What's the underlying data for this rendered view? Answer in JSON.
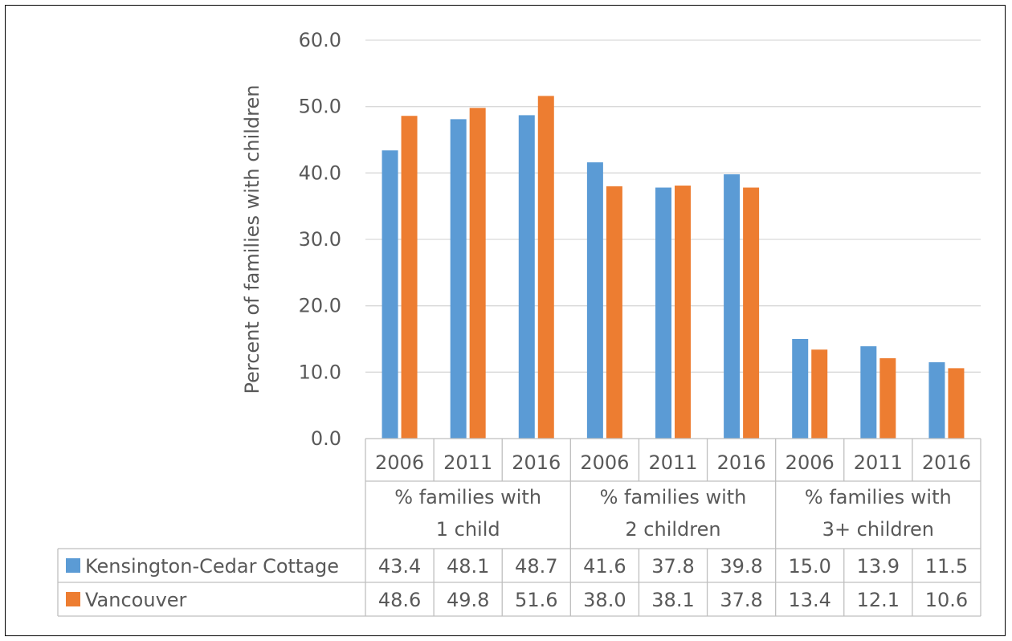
{
  "chart_data": {
    "type": "bar",
    "ylabel": "Percent of families with children",
    "ylim": [
      0,
      60
    ],
    "yticks": [
      "0.0",
      "10.0",
      "20.0",
      "30.0",
      "40.0",
      "50.0",
      "60.0"
    ],
    "grid": true,
    "legend": "data-table",
    "groups": [
      {
        "label_lines": [
          "% families with",
          "1 child"
        ],
        "years": [
          "2006",
          "2011",
          "2016"
        ]
      },
      {
        "label_lines": [
          "% families with",
          "2 children"
        ],
        "years": [
          "2006",
          "2011",
          "2016"
        ]
      },
      {
        "label_lines": [
          "% families with",
          "3+ children"
        ],
        "years": [
          "2006",
          "2011",
          "2016"
        ]
      }
    ],
    "series": [
      {
        "name": "Kensington-Cedar Cottage",
        "color": "#5b9bd5",
        "values": [
          43.4,
          48.1,
          48.7,
          41.6,
          37.8,
          39.8,
          15.0,
          13.9,
          11.5
        ],
        "labels": [
          "43.4",
          "48.1",
          "48.7",
          "41.6",
          "37.8",
          "39.8",
          "15.0",
          "13.9",
          "11.5"
        ]
      },
      {
        "name": "Vancouver",
        "color": "#ed7d31",
        "values": [
          48.6,
          49.8,
          51.6,
          38.0,
          38.1,
          37.8,
          13.4,
          12.1,
          10.6
        ],
        "labels": [
          "48.6",
          "49.8",
          "51.6",
          "38.0",
          "38.1",
          "37.8",
          "13.4",
          "12.1",
          "10.6"
        ]
      }
    ]
  }
}
